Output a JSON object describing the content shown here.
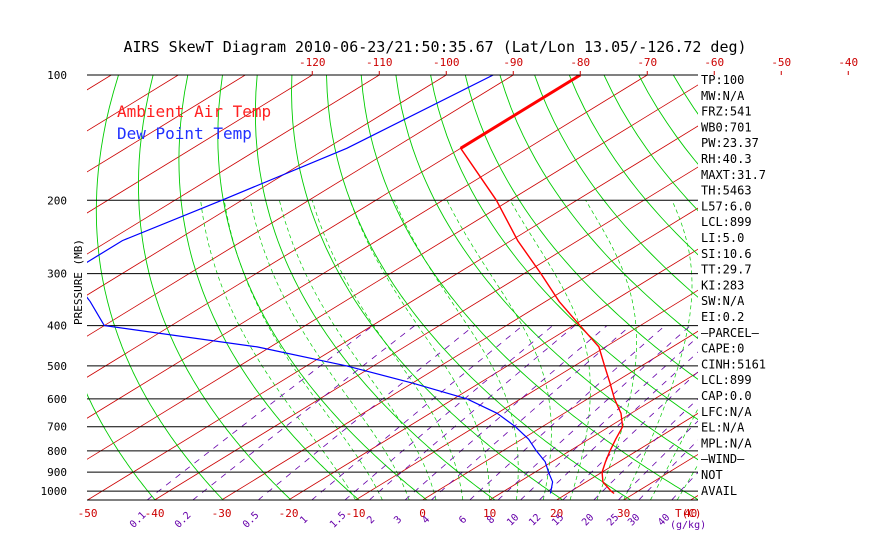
{
  "chart_data": {
    "type": "line",
    "title": "AIRS SkewT Diagram 2010-06-23/21:50:35.67 (Lat/Lon 13.05/-126.72 deg)",
    "ylabel": "PRESSURE (MB)",
    "xlabel_bottom_unit": "T(C)",
    "mixing_unit": "(g/kg)",
    "y_scale": "log",
    "ylim": [
      1050,
      100
    ],
    "pressure_ticks": [
      100,
      200,
      300,
      400,
      500,
      600,
      700,
      800,
      900,
      1000
    ],
    "temp_ticks_top": [
      -120,
      -110,
      -100,
      -90,
      -80,
      -70,
      -60,
      -50,
      -40
    ],
    "temp_ticks_bottom": [
      -50,
      -40,
      -30,
      -20,
      -10,
      0,
      10,
      20,
      30,
      40
    ],
    "mixing_ratio_labels": [
      "0.1",
      "0.2",
      "0.5",
      "1",
      "1.5",
      "2",
      "3",
      "4",
      "6",
      "8",
      "10",
      "12",
      "15",
      "20",
      "25",
      "30",
      "40"
    ],
    "legend": [
      {
        "name": "Ambient Air Temp",
        "color": "#ff2020"
      },
      {
        "name": "Dew Point Temp",
        "color": "#2030ff"
      }
    ],
    "colors": {
      "isotherm": "#cc0000",
      "dry_adiabat": "#00cc00",
      "moist_adiabat": "#00cc00",
      "mixing_ratio": "#6600aa",
      "temperature": "#ff0000",
      "dewpoint": "#0000ff",
      "isobar": "#000000"
    },
    "grid": true,
    "series": [
      {
        "name": "Ambient Air Temp",
        "points": [
          {
            "p": 100,
            "t": -80
          },
          {
            "p": 150,
            "t": -80
          },
          {
            "p": 200,
            "t": -62
          },
          {
            "p": 250,
            "t": -49
          },
          {
            "p": 300,
            "t": -37.5
          },
          {
            "p": 350,
            "t": -28
          },
          {
            "p": 400,
            "t": -19
          },
          {
            "p": 450,
            "t": -11
          },
          {
            "p": 500,
            "t": -5.5
          },
          {
            "p": 550,
            "t": -0.5
          },
          {
            "p": 600,
            "t": 4
          },
          {
            "p": 650,
            "t": 8.5
          },
          {
            "p": 700,
            "t": 12
          },
          {
            "p": 750,
            "t": 14
          },
          {
            "p": 800,
            "t": 16
          },
          {
            "p": 850,
            "t": 18
          },
          {
            "p": 900,
            "t": 20
          },
          {
            "p": 950,
            "t": 22.5
          },
          {
            "p": 1000,
            "t": 26
          },
          {
            "p": 1013,
            "t": 27
          }
        ]
      },
      {
        "name": "Dew Point Temp",
        "points": [
          {
            "p": 100,
            "t": -93
          },
          {
            "p": 150,
            "t": -97
          },
          {
            "p": 200,
            "t": -103
          },
          {
            "p": 250,
            "t": -108
          },
          {
            "p": 300,
            "t": -108
          },
          {
            "p": 350,
            "t": -98
          },
          {
            "p": 400,
            "t": -90
          },
          {
            "p": 450,
            "t": -62
          },
          {
            "p": 500,
            "t": -44
          },
          {
            "p": 550,
            "t": -30
          },
          {
            "p": 600,
            "t": -18
          },
          {
            "p": 650,
            "t": -10
          },
          {
            "p": 700,
            "t": -4
          },
          {
            "p": 750,
            "t": 1
          },
          {
            "p": 800,
            "t": 5
          },
          {
            "p": 850,
            "t": 9
          },
          {
            "p": 900,
            "t": 12
          },
          {
            "p": 950,
            "t": 15
          },
          {
            "p": 1000,
            "t": 17
          },
          {
            "p": 1013,
            "t": 17.5
          }
        ]
      }
    ]
  },
  "stats": [
    "TP:100",
    "MW:N/A",
    "FRZ:541",
    "WB0:701",
    "PW:23.37",
    "RH:40.3",
    "MAXT:31.7",
    "TH:5463",
    "L57:6.0",
    "LCL:899",
    "LI:5.0",
    "SI:10.6",
    "TT:29.7",
    "KI:283",
    "SW:N/A",
    "EI:0.2",
    "—PARCEL—",
    "CAPE:0",
    "CINH:5161",
    "LCL:899",
    "CAP:0.0",
    "LFC:N/A",
    "EL:N/A",
    "MPL:N/A",
    "—WIND—",
    "NOT",
    "AVAIL"
  ]
}
